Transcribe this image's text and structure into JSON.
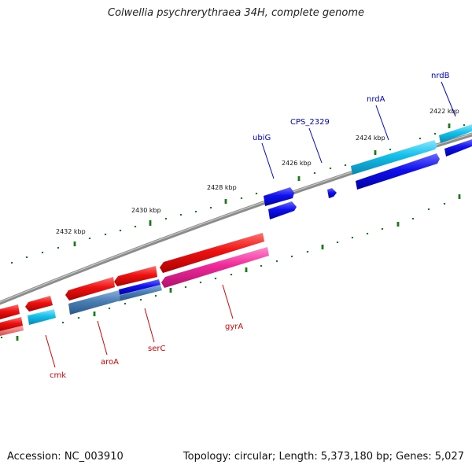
{
  "title": "Colwellia psychrerythraea 34H, complete genome",
  "footer": {
    "accession": "Accession: NC_003910",
    "summary": "Topology: circular; Length: 5,373,180 bp; Genes: 5,027"
  },
  "ticks": [
    {
      "label": "2422 kbp"
    },
    {
      "label": "2424 kbp"
    },
    {
      "label": "2426 kbp"
    },
    {
      "label": "2428 kbp"
    },
    {
      "label": "2430 kbp"
    },
    {
      "label": "2432 kbp"
    }
  ],
  "gene_labels": [
    {
      "name": "nrdB",
      "strand": "forward"
    },
    {
      "name": "nrdA",
      "strand": "forward"
    },
    {
      "name": "CPS_2329",
      "strand": "forward"
    },
    {
      "name": "ubiG",
      "strand": "forward"
    },
    {
      "name": "gyrA",
      "strand": "reverse"
    },
    {
      "name": "serC",
      "strand": "reverse"
    },
    {
      "name": "aroA",
      "strand": "reverse"
    },
    {
      "name": "cmk",
      "strand": "reverse"
    }
  ],
  "colors": {
    "forward_label": "#0000cc",
    "reverse_label": "#dd0000",
    "forward_cds": "#1010ee",
    "forward_gene": "#12c0ea",
    "reverse_cds": "#ee1111",
    "reverse_gene_gyrA": "#ee2a9a",
    "reverse_gene": "#4a7eb4",
    "backbone": "#8c8c8c",
    "tick": "#1a7a1a"
  }
}
